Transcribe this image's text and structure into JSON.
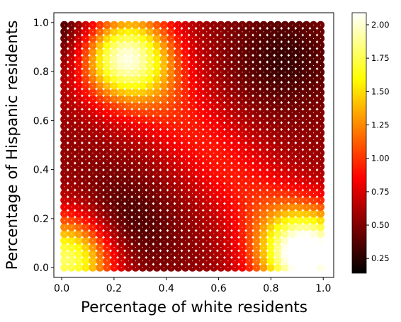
{
  "chart_data": {
    "type": "heatmap",
    "title": "",
    "xlabel": "Percentage of white residents",
    "ylabel": "Percentage of Hispanic residents",
    "xlim": [
      -0.03,
      1.04
    ],
    "ylim": [
      -0.04,
      1.04
    ],
    "x_ticks": [
      0.0,
      0.2,
      0.4,
      0.6,
      0.8,
      1.0
    ],
    "x_tick_labels": [
      "0.0",
      "0.2",
      "0.4",
      "0.6",
      "0.8",
      "1.0"
    ],
    "y_ticks": [
      0.0,
      0.2,
      0.4,
      0.6,
      0.8,
      1.0
    ],
    "y_tick_labels": [
      "0.0",
      "0.2",
      "0.4",
      "0.6",
      "0.8",
      "1.0"
    ],
    "grid": false,
    "colormap": "hot",
    "colorbar": {
      "min": 0.14,
      "max": 2.09,
      "ticks": [
        0.25,
        0.5,
        0.75,
        1.0,
        1.25,
        1.5,
        1.75,
        2.0
      ],
      "tick_labels": [
        "0.25",
        "0.50",
        "0.75",
        "1.00",
        "1.25",
        "1.50",
        "1.75",
        "2.00"
      ]
    },
    "grid_points": {
      "x_start": 0.01,
      "x_end": 0.99,
      "y_start": 0.0,
      "y_end": 0.99,
      "count_x": 37,
      "count_y": 37
    },
    "features": [
      {
        "name": "base",
        "value": 0.55
      },
      {
        "name": "peak",
        "x": 0.24,
        "y": 0.86,
        "value": 1.75
      },
      {
        "name": "peak",
        "x": 0.94,
        "y": 0.05,
        "value": 2.05
      },
      {
        "name": "peak",
        "x": 0.03,
        "y": 0.04,
        "value": 1.9
      },
      {
        "name": "ridge",
        "from": [
          0.25,
          0.85
        ],
        "to": [
          0.9,
          0.1
        ],
        "value": 1.15
      },
      {
        "name": "low",
        "x": 0.2,
        "y": 0.15,
        "value": 0.2
      },
      {
        "name": "low",
        "x": 0.85,
        "y": 0.85,
        "value": 0.3
      },
      {
        "name": "low",
        "x": 0.02,
        "y": 0.95,
        "value": 0.2
      }
    ]
  }
}
